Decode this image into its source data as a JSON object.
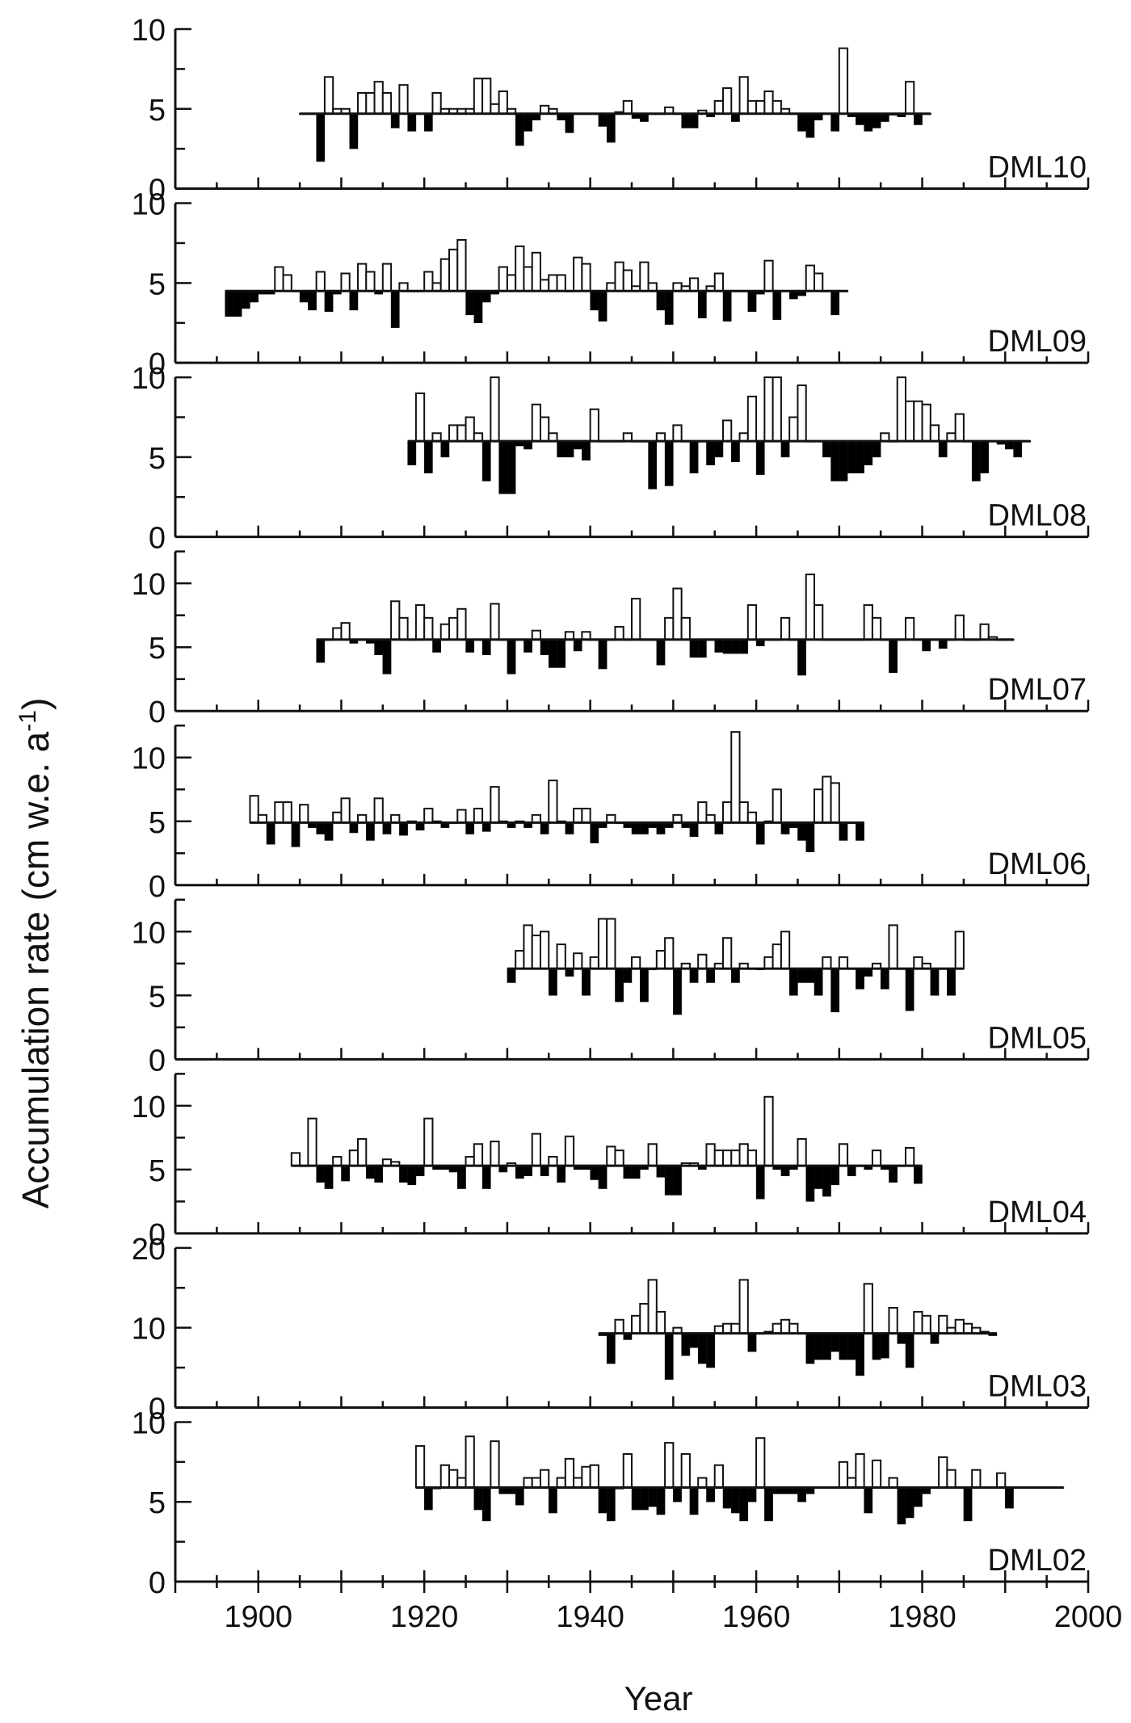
{
  "figure": {
    "ylabel": "Accumulation rate (cm w.e. a",
    "ylabel_sup": "-1",
    "ylabel_close": ")",
    "xlabel": "Year"
  },
  "colors": {
    "axis": "#111111",
    "line": "#111111",
    "negative_fill": "#000000",
    "positive_fill": "#ffffff",
    "background": "#ffffff"
  },
  "chart_data": [
    {
      "type": "bar",
      "name": "DML10",
      "mean": 4.7,
      "ylim": [
        0,
        10
      ],
      "yticks": [
        0,
        5,
        10
      ],
      "xlim": [
        1890,
        2000
      ],
      "start_year": 1905,
      "values": [
        4.7,
        4.7,
        1.7,
        7.0,
        5.0,
        5.0,
        2.5,
        6.0,
        6.0,
        6.7,
        6.0,
        3.8,
        6.5,
        3.6,
        4.7,
        3.6,
        6.0,
        5.0,
        5.0,
        5.0,
        5.0,
        6.9,
        6.9,
        5.3,
        6.1,
        5.0,
        2.7,
        3.6,
        4.3,
        5.2,
        5.0,
        4.3,
        3.5,
        4.7,
        4.7,
        4.7,
        3.9,
        2.9,
        4.8,
        5.5,
        4.4,
        4.2,
        4.7,
        4.7,
        5.1,
        4.7,
        3.8,
        3.8,
        4.9,
        4.5,
        5.5,
        6.3,
        4.2,
        7.0,
        5.5,
        5.5,
        6.1,
        5.5,
        5.0,
        4.7,
        3.6,
        3.2,
        4.3,
        4.7,
        3.6,
        8.8,
        4.5,
        4.0,
        3.6,
        3.8,
        4.2,
        4.6,
        4.5,
        6.7,
        4.0,
        4.7
      ],
      "xlabel": "",
      "ylabel": ""
    },
    {
      "type": "bar",
      "name": "DML09",
      "mean": 4.5,
      "ylim": [
        0,
        10
      ],
      "yticks": [
        0,
        5,
        10
      ],
      "xlim": [
        1890,
        2000
      ],
      "start_year": 1896,
      "values": [
        2.9,
        2.9,
        3.4,
        3.8,
        4.3,
        4.3,
        6.0,
        5.5,
        4.5,
        3.8,
        3.3,
        5.7,
        3.2,
        4.3,
        5.6,
        3.3,
        6.2,
        5.7,
        4.3,
        6.2,
        2.2,
        5.0,
        4.5,
        4.5,
        5.7,
        5.0,
        6.5,
        7.1,
        7.7,
        3.0,
        2.5,
        3.8,
        4.3,
        6.0,
        5.5,
        7.3,
        6.0,
        6.9,
        5.2,
        5.5,
        5.5,
        4.5,
        6.6,
        6.2,
        3.3,
        2.6,
        5.0,
        6.3,
        5.8,
        4.8,
        6.3,
        5.0,
        3.3,
        2.4,
        5.0,
        4.8,
        5.3,
        2.8,
        4.8,
        5.6,
        2.6,
        4.5,
        4.5,
        3.2,
        4.3,
        6.4,
        2.7,
        4.5,
        4.0,
        4.2,
        6.1,
        5.6,
        4.5,
        3.0,
        4.5
      ]
    },
    {
      "type": "bar",
      "name": "DML08",
      "mean": 6.0,
      "ylim": [
        0,
        10
      ],
      "yticks": [
        0,
        5,
        10
      ],
      "xlim": [
        1890,
        2000
      ],
      "start_year": 1918,
      "values": [
        4.5,
        9.0,
        4.0,
        6.5,
        5.0,
        7.0,
        7.0,
        7.5,
        6.5,
        3.5,
        10.0,
        2.7,
        2.7,
        5.7,
        5.5,
        8.3,
        7.5,
        6.5,
        5.0,
        5.0,
        5.5,
        4.8,
        8.0,
        6.0,
        6.0,
        6.0,
        6.5,
        6.0,
        6.0,
        3.0,
        6.5,
        3.2,
        7.0,
        6.0,
        4.0,
        6.0,
        4.5,
        5.0,
        7.3,
        4.7,
        6.5,
        8.8,
        3.9,
        10.0,
        10.0,
        5.0,
        7.5,
        9.5,
        6.0,
        6.0,
        5.0,
        3.5,
        3.5,
        4.0,
        4.0,
        4.5,
        5.0,
        6.5,
        6.0,
        10.0,
        8.5,
        8.5,
        8.3,
        7.0,
        5.0,
        6.5,
        7.7,
        6.0,
        3.5,
        4.0,
        6.0,
        5.8,
        5.5,
        5.0,
        6.0
      ]
    },
    {
      "type": "bar",
      "name": "DML07",
      "mean": 5.6,
      "ylim": [
        0,
        12.5
      ],
      "yticks": [
        0,
        5,
        10
      ],
      "xlim": [
        1890,
        2000
      ],
      "start_year": 1907,
      "values": [
        3.8,
        5.6,
        6.5,
        6.9,
        5.3,
        5.6,
        5.3,
        4.4,
        2.9,
        8.6,
        7.3,
        5.6,
        8.3,
        7.3,
        4.6,
        6.8,
        7.3,
        8.0,
        4.6,
        5.6,
        4.4,
        8.4,
        5.6,
        2.9,
        5.6,
        4.6,
        6.3,
        4.4,
        3.4,
        3.4,
        6.2,
        4.7,
        6.2,
        5.6,
        3.3,
        5.6,
        6.6,
        5.6,
        8.8,
        5.6,
        5.6,
        3.6,
        7.3,
        9.6,
        7.3,
        4.2,
        4.2,
        5.6,
        4.6,
        4.5,
        4.5,
        4.5,
        8.3,
        5.1,
        5.6,
        5.6,
        7.3,
        5.6,
        2.8,
        10.7,
        8.3,
        5.6,
        5.6,
        5.6,
        5.6,
        5.6,
        8.3,
        7.3,
        5.6,
        3.0,
        5.6,
        7.3,
        5.6,
        4.7,
        5.6,
        4.9,
        5.6,
        7.5,
        5.6,
        5.6,
        6.8,
        5.8,
        5.6,
        5.6
      ]
    },
    {
      "type": "bar",
      "name": "DML06",
      "mean": 4.9,
      "ylim": [
        0,
        12.5
      ],
      "yticks": [
        0,
        5,
        10
      ],
      "xlim": [
        1890,
        2000
      ],
      "start_year": 1899,
      "values": [
        7.0,
        5.5,
        3.2,
        6.5,
        6.5,
        3.0,
        6.3,
        4.5,
        4.0,
        3.5,
        5.7,
        6.8,
        4.1,
        5.5,
        3.5,
        6.8,
        4.0,
        5.5,
        3.9,
        5.0,
        4.3,
        6.0,
        5.0,
        4.5,
        4.9,
        5.9,
        4.0,
        6.0,
        4.2,
        7.7,
        5.0,
        4.5,
        5.0,
        4.5,
        5.5,
        4.0,
        8.2,
        5.0,
        4.0,
        6.0,
        6.0,
        3.3,
        4.5,
        5.5,
        4.9,
        4.5,
        4.0,
        4.0,
        4.5,
        4.0,
        4.5,
        5.5,
        4.5,
        3.8,
        6.5,
        5.5,
        4.0,
        6.5,
        12.0,
        6.5,
        5.7,
        3.2,
        5.0,
        7.5,
        4.0,
        4.5,
        3.5,
        2.6,
        7.5,
        8.5,
        8.0,
        3.5,
        4.9,
        3.5
      ]
    },
    {
      "type": "bar",
      "name": "DML05",
      "mean": 7.1,
      "ylim": [
        0,
        12.5
      ],
      "yticks": [
        0,
        5,
        10
      ],
      "xlim": [
        1890,
        2000
      ],
      "start_year": 1930,
      "values": [
        6.0,
        8.5,
        10.5,
        9.7,
        10.0,
        5.0,
        9.0,
        6.5,
        8.3,
        5.0,
        8.0,
        11.0,
        11.0,
        4.5,
        6.0,
        8.0,
        4.5,
        7.0,
        8.5,
        9.5,
        3.5,
        7.5,
        6.0,
        8.2,
        6.0,
        7.5,
        9.5,
        6.0,
        7.5,
        7.1,
        7.0,
        8.0,
        9.0,
        10.0,
        5.0,
        6.0,
        6.0,
        5.0,
        8.0,
        3.7,
        8.0,
        7.1,
        5.5,
        6.5,
        7.5,
        5.5,
        10.5,
        7.1,
        3.8,
        8.0,
        7.5,
        5.0,
        7.1,
        5.0,
        10.0
      ],
      "series_end_note": ""
    },
    {
      "type": "bar",
      "name": "DML04",
      "mean": 5.3,
      "ylim": [
        0,
        12.5
      ],
      "yticks": [
        0,
        5,
        10
      ],
      "xlim": [
        1890,
        2000
      ],
      "start_year": 1904,
      "values": [
        6.3,
        5.3,
        9.0,
        4.0,
        3.5,
        6.0,
        4.1,
        6.5,
        7.4,
        4.3,
        4.0,
        5.8,
        5.6,
        4.0,
        3.8,
        4.5,
        9.0,
        5.0,
        5.0,
        4.8,
        3.5,
        6.0,
        7.0,
        3.5,
        7.2,
        4.8,
        5.5,
        4.3,
        4.5,
        7.8,
        4.5,
        6.0,
        4.0,
        7.6,
        5.0,
        5.0,
        4.2,
        3.5,
        6.8,
        6.5,
        4.3,
        4.3,
        5.0,
        7.0,
        4.4,
        3.0,
        3.0,
        5.5,
        5.5,
        5.0,
        7.0,
        6.5,
        6.5,
        6.5,
        7.0,
        6.5,
        2.7,
        10.7,
        5.0,
        4.5,
        5.0,
        7.4,
        2.5,
        3.5,
        2.9,
        3.8,
        7.0,
        4.5,
        5.3,
        5.0,
        6.5,
        5.0,
        4.0,
        5.3,
        6.7,
        3.9
      ]
    },
    {
      "type": "bar",
      "name": "DML03",
      "mean": 9.3,
      "ylim": [
        0,
        20
      ],
      "yticks": [
        0,
        10,
        20
      ],
      "xlim": [
        1890,
        2000
      ],
      "start_year": 1941,
      "values": [
        9.0,
        5.5,
        11.0,
        8.5,
        11.5,
        13.0,
        16.0,
        12.0,
        3.5,
        10.0,
        6.5,
        7.5,
        5.5,
        5.0,
        10.2,
        10.5,
        10.5,
        16.0,
        7.0,
        9.3,
        9.5,
        10.5,
        11.0,
        10.5,
        9.3,
        5.5,
        6.0,
        6.0,
        7.0,
        6.0,
        6.0,
        4.0,
        15.5,
        6.0,
        6.2,
        12.5,
        8.0,
        5.0,
        12.0,
        11.5,
        8.0,
        11.5,
        10.0,
        11.0,
        10.5,
        10.0,
        9.5,
        9.0
      ],
      "series_end_note": ""
    },
    {
      "type": "bar",
      "name": "DML02",
      "mean": 5.9,
      "ylim": [
        0,
        10
      ],
      "yticks": [
        0,
        5,
        10
      ],
      "xlim": [
        1890,
        2000
      ],
      "start_year": 1919,
      "values": [
        8.5,
        4.5,
        5.8,
        7.3,
        7.0,
        6.5,
        9.1,
        4.5,
        3.8,
        8.8,
        5.5,
        5.5,
        4.8,
        6.5,
        6.5,
        7.0,
        4.3,
        6.5,
        7.7,
        6.5,
        7.2,
        7.3,
        4.3,
        3.8,
        5.8,
        8.0,
        4.5,
        4.5,
        4.7,
        4.2,
        8.7,
        5.0,
        8.0,
        4.2,
        6.5,
        5.0,
        7.3,
        4.6,
        4.3,
        3.8,
        5.0,
        9.0,
        3.8,
        5.5,
        5.5,
        5.5,
        5.0,
        5.5,
        5.9,
        5.9,
        5.9,
        7.5,
        6.5,
        8.0,
        4.3,
        7.6,
        5.9,
        6.5,
        3.6,
        4.0,
        4.7,
        5.5,
        5.9,
        7.8,
        7.0,
        5.9,
        3.8,
        7.0,
        5.9,
        5.9,
        6.8,
        4.6,
        5.9,
        5.9,
        5.9,
        5.9,
        5.9,
        5.9
      ],
      "series_end_note": ""
    }
  ]
}
